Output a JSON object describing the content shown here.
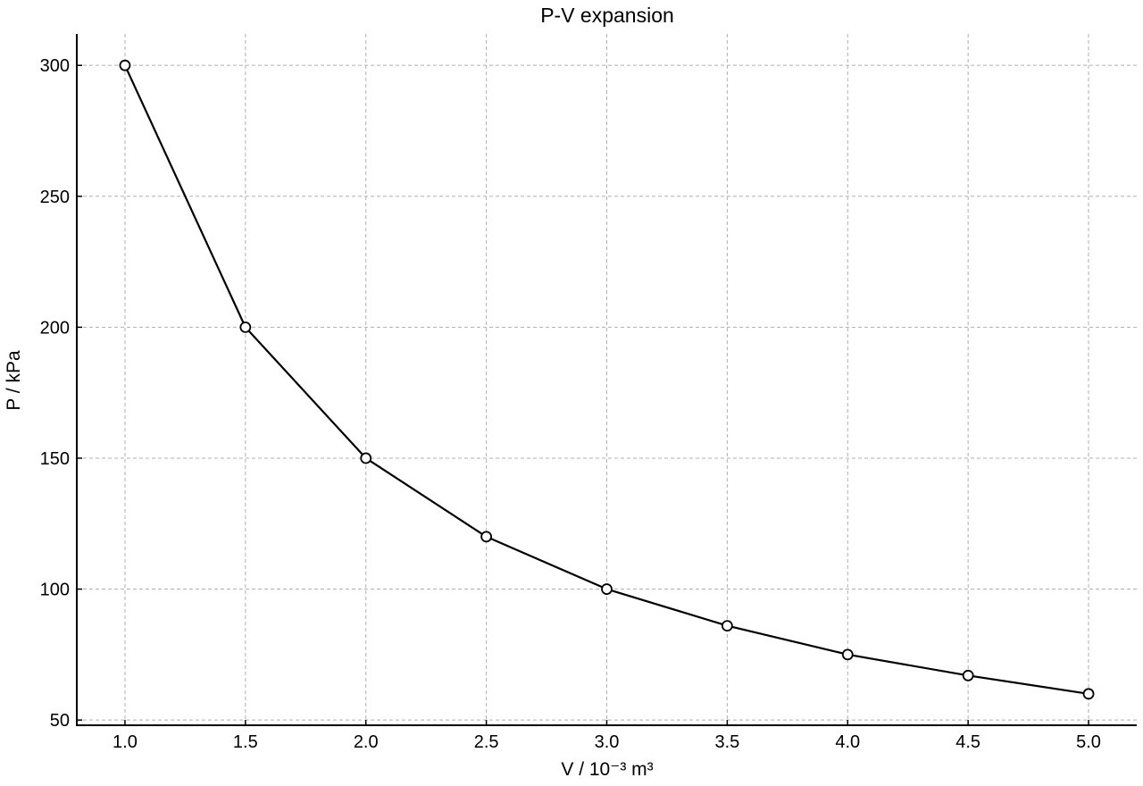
{
  "chart_data": {
    "type": "line",
    "title": "P-V expansion",
    "xlabel": "V / 10⁻³ m³",
    "ylabel": "P / kPa",
    "xlim": [
      0.8,
      5.2
    ],
    "ylim": [
      48,
      312
    ],
    "xticks": [
      1.0,
      1.5,
      2.0,
      2.5,
      3.0,
      3.5,
      4.0,
      4.5,
      5.0
    ],
    "xtick_labels": [
      "1.0",
      "1.5",
      "2.0",
      "2.5",
      "3.0",
      "3.5",
      "4.0",
      "4.5",
      "5.0"
    ],
    "yticks": [
      50,
      100,
      150,
      200,
      250,
      300
    ],
    "ytick_labels": [
      "50",
      "100",
      "150",
      "200",
      "250",
      "300"
    ],
    "grid": true,
    "series": [
      {
        "x": [
          1.0,
          1.5,
          2.0,
          2.5,
          3.0,
          3.5,
          4.0,
          4.5,
          5.0
        ],
        "y": [
          300,
          200,
          150,
          120,
          100,
          86,
          75,
          67,
          60
        ],
        "color": "#000000",
        "marker": "open-circle"
      }
    ]
  }
}
